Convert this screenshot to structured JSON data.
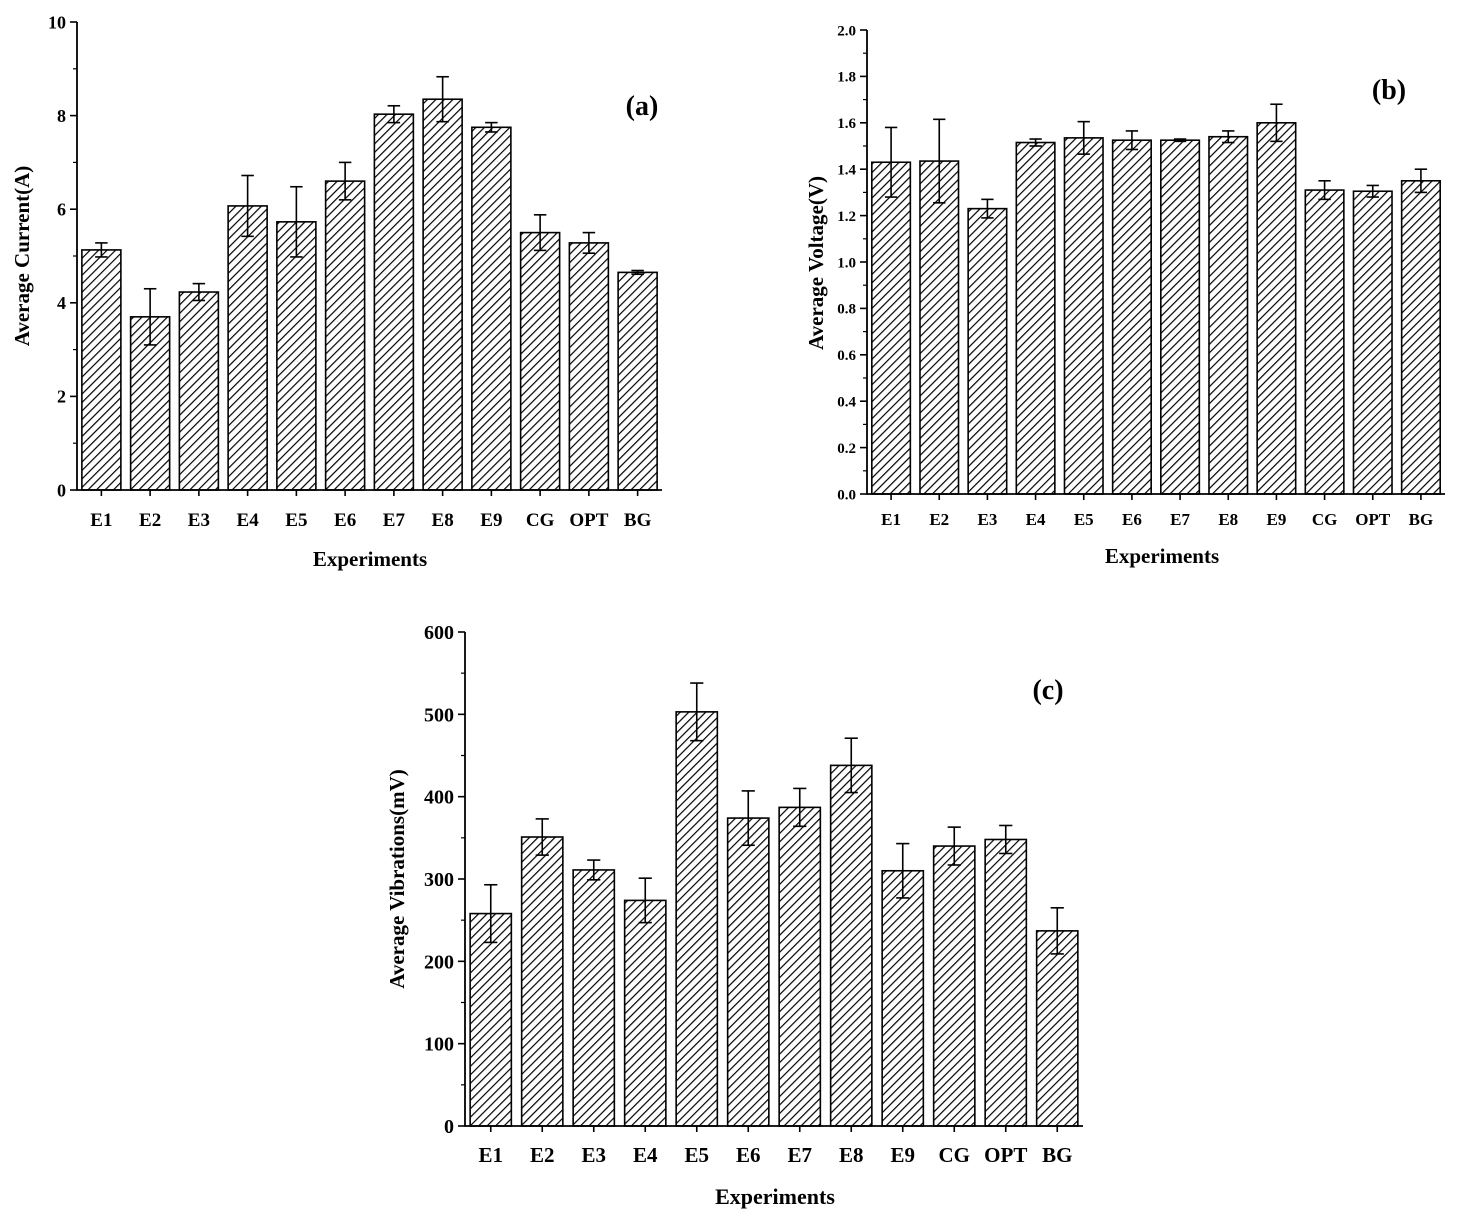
{
  "chart_data": [
    {
      "type": "bar",
      "panel_label": "(a)",
      "xlabel": "Experiments",
      "ylabel": "Average Current(A)",
      "categories": [
        "E1",
        "E2",
        "E3",
        "E4",
        "E5",
        "E6",
        "E7",
        "E8",
        "E9",
        "CG",
        "OPT",
        "BG"
      ],
      "values": [
        5.13,
        3.7,
        4.23,
        6.07,
        5.73,
        6.6,
        8.03,
        8.35,
        7.75,
        5.5,
        5.28,
        4.65
      ],
      "errors": [
        0.15,
        0.6,
        0.18,
        0.65,
        0.75,
        0.4,
        0.18,
        0.48,
        0.1,
        0.38,
        0.22,
        0.04
      ],
      "ylim": [
        0,
        10
      ],
      "yticks": [
        "0",
        "2",
        "4",
        "6",
        "8",
        "10"
      ],
      "grid": false,
      "fill": "diagonal-hatch",
      "bar_color": "#000000"
    },
    {
      "type": "bar",
      "panel_label": "(b)",
      "xlabel": "Experiments",
      "ylabel": "Average Voltage(V)",
      "categories": [
        "E1",
        "E2",
        "E3",
        "E4",
        "E5",
        "E6",
        "E7",
        "E8",
        "E9",
        "CG",
        "OPT",
        "BG"
      ],
      "values": [
        1.43,
        1.435,
        1.23,
        1.515,
        1.535,
        1.525,
        1.525,
        1.54,
        1.6,
        1.31,
        1.305,
        1.35
      ],
      "errors": [
        0.15,
        0.18,
        0.04,
        0.015,
        0.07,
        0.04,
        0.005,
        0.025,
        0.08,
        0.04,
        0.025,
        0.05
      ],
      "ylim": [
        0,
        2.0
      ],
      "yticks": [
        "0.0",
        "0.2",
        "0.4",
        "0.6",
        "0.8",
        "1.0",
        "1.2",
        "1.4",
        "1.6",
        "1.8",
        "2.0"
      ],
      "grid": false,
      "fill": "diagonal-hatch",
      "bar_color": "#000000"
    },
    {
      "type": "bar",
      "panel_label": "(c)",
      "xlabel": "Experiments",
      "ylabel": "Average Vibrations(mV)",
      "categories": [
        "E1",
        "E2",
        "E3",
        "E4",
        "E5",
        "E6",
        "E7",
        "E8",
        "E9",
        "CG",
        "OPT",
        "BG"
      ],
      "values": [
        258,
        351,
        311,
        274,
        503,
        374,
        387,
        438,
        310,
        340,
        348,
        237
      ],
      "errors": [
        35,
        22,
        12,
        27,
        35,
        33,
        23,
        33,
        33,
        23,
        17,
        28
      ],
      "ylim": [
        0,
        600
      ],
      "yticks": [
        "0",
        "100",
        "200",
        "300",
        "400",
        "500",
        "600"
      ],
      "grid": false,
      "fill": "diagonal-hatch",
      "bar_color": "#000000"
    }
  ]
}
